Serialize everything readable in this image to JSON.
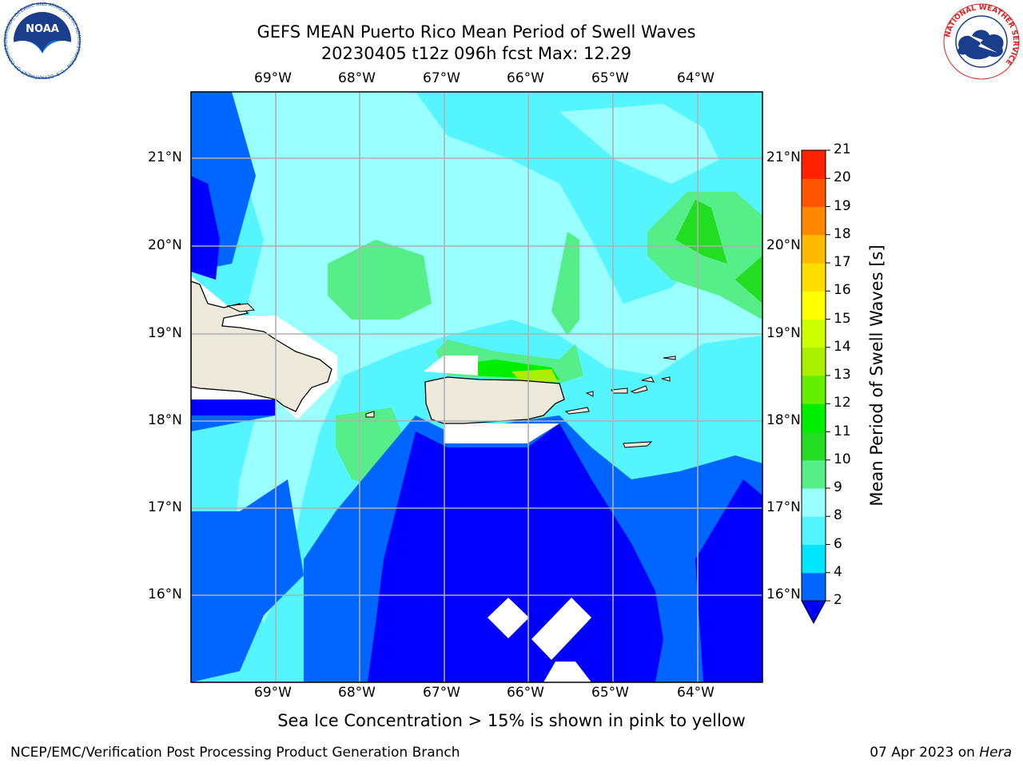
{
  "title": {
    "line1": "GEFS MEAN Puerto Rico Mean Period of Swell Waves",
    "line2": "20230405 t12z 096h fcst   Max: 12.29"
  },
  "axes": {
    "lon_labels": [
      "69°W",
      "68°W",
      "67°W",
      "66°W",
      "65°W",
      "64°W"
    ],
    "lat_labels": [
      "21°N",
      "20°N",
      "19°N",
      "18°N",
      "17°N",
      "16°N"
    ]
  },
  "colorbar": {
    "label": "Mean Period of Swell Waves [s]",
    "ticks": [
      "2",
      "4",
      "6",
      "8",
      "9",
      "10",
      "11",
      "12",
      "13",
      "14",
      "15",
      "16",
      "17",
      "18",
      "19",
      "20",
      "21"
    ],
    "colors": [
      "#0000ff",
      "#0066ff",
      "#00e5ff",
      "#55f5ff",
      "#99ffff",
      "#55ee88",
      "#22dd22",
      "#00ee00",
      "#66ee00",
      "#aaee00",
      "#ccff00",
      "#ffff00",
      "#ffdd00",
      "#ffbb00",
      "#ff8800",
      "#ff5500",
      "#ff2200",
      "#ff0000"
    ]
  },
  "caption": "Sea Ice Concentration > 15% is shown in pink to yellow",
  "footer": {
    "left": "NCEP/EMC/Verification Post Processing Product Generation Branch",
    "date": "07 Apr 2023 on ",
    "machine": "Hera"
  },
  "logos": {
    "noaa_text": "NOAA",
    "noaa_ring": "NATIONAL OCEANIC AND ATMOSPHERIC ADMINISTRATION · U.S. DEPARTMENT OF COMMERCE",
    "nws_ring": "NATIONAL WEATHER SERVICE"
  },
  "colors": {
    "land": "#eeeadb",
    "grid": "#b0b0b0",
    "deep": "#0000ff",
    "mid": "#0066ff"
  }
}
